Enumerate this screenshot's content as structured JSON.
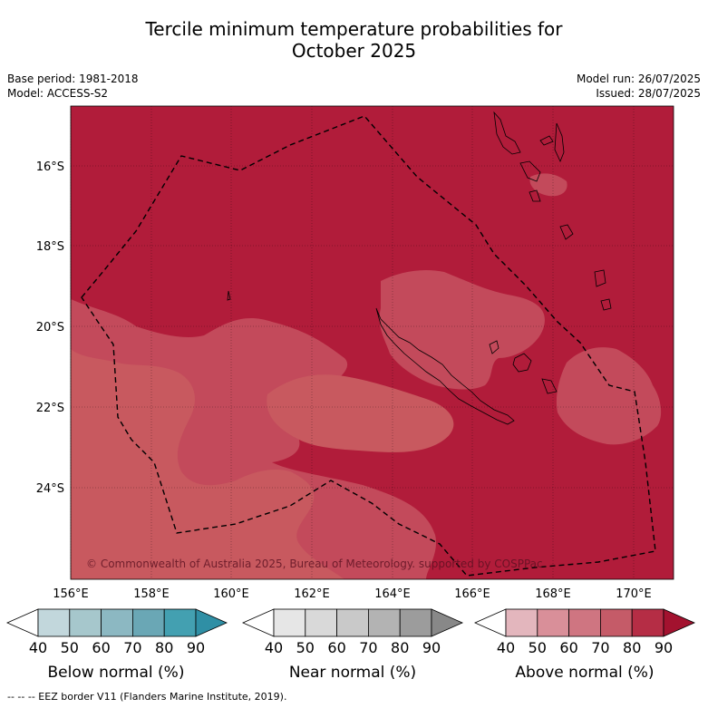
{
  "title": {
    "line1": "Tercile minimum temperature probabilities for",
    "line2": "October 2025"
  },
  "meta": {
    "base_period": "Base period: 1981-2018",
    "model": "Model: ACCESS-S2",
    "model_run": "Model run: 26/07/2025",
    "issued": "Issued: 28/07/2025"
  },
  "map": {
    "lat_ticks": [
      "16°S",
      "18°S",
      "20°S",
      "22°S",
      "24°S"
    ],
    "lon_ticks": [
      "156°E",
      "158°E",
      "160°E",
      "162°E",
      "164°E",
      "166°E",
      "168°E",
      "170°E"
    ],
    "copyright": "© Commonwealth of Australia 2025, Bureau of Meteorology. supported by COSPPac",
    "colors": {
      "above_80_90": "#b11c3a",
      "above_70_80": "#c34a5b",
      "above_60_70": "#c8595f"
    },
    "grid": true,
    "eez_border": "dashed"
  },
  "legend": {
    "ticks": [
      "40",
      "50",
      "60",
      "70",
      "80",
      "90"
    ],
    "below": {
      "title": "Below normal (%)",
      "colors": [
        "#ffffff",
        "#c2d7dc",
        "#a6c7cc",
        "#8cb8c2",
        "#6aa7b5",
        "#43a0b1",
        "#2f8fa5"
      ]
    },
    "near": {
      "title": "Near normal (%)",
      "colors": [
        "#ffffff",
        "#e6e6e6",
        "#d9d9d9",
        "#c9c9c9",
        "#b3b3b3",
        "#9c9c9c",
        "#888888"
      ]
    },
    "above": {
      "title": "Above normal (%)",
      "colors": [
        "#ffffff",
        "#e3b6bd",
        "#d98f99",
        "#cf7581",
        "#c55b68",
        "#b52d45",
        "#a3122f"
      ]
    }
  },
  "footer": "--  --  -- EEZ border V11 (Flanders Marine Institute, 2019)."
}
